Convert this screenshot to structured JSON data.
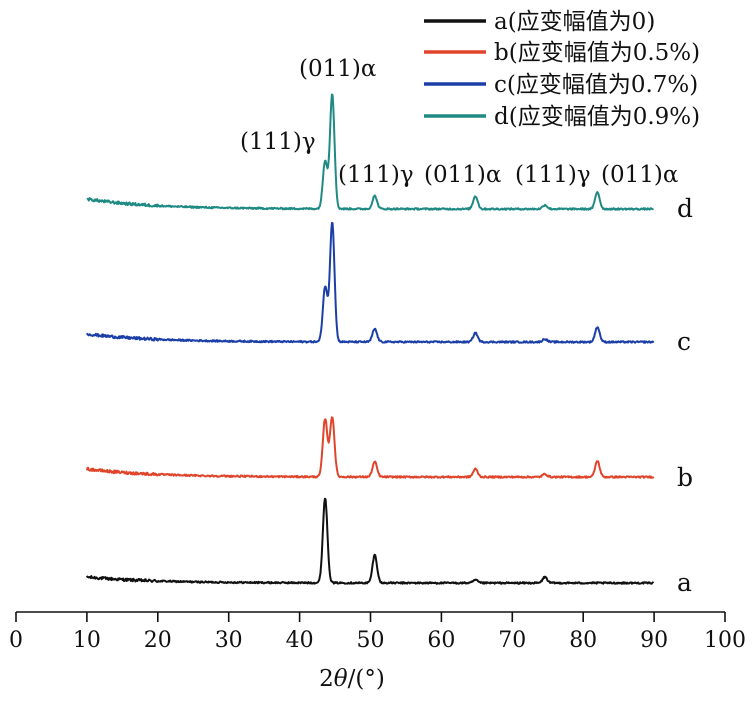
{
  "chart_data": {
    "type": "line",
    "xlabel": "2θ/(°)",
    "xlabel_parts": {
      "prefix": "2",
      "italic": "θ",
      "suffix": "/(°)"
    },
    "ylabel": "",
    "xlim": [
      0,
      100
    ],
    "xticks": [
      "0",
      "10",
      "20",
      "30",
      "40",
      "50",
      "60",
      "70",
      "80",
      "90",
      "100"
    ],
    "y_ticks_shown": false,
    "grid": false,
    "legend_position": "top-right",
    "x_range_measured": [
      10,
      90
    ],
    "series": [
      {
        "name": "a(应变幅值为0)",
        "curve_label": "a",
        "color": "#111111",
        "peaks": [
          {
            "x": 43.6,
            "height": 85
          },
          {
            "x": 50.6,
            "height": 28
          },
          {
            "x": 64.8,
            "height": 3
          },
          {
            "x": 74.6,
            "height": 6
          }
        ]
      },
      {
        "name": "b(应变幅值为0.5%)",
        "curve_label": "b",
        "color": "#e0452b",
        "peaks": [
          {
            "x": 43.6,
            "height": 58
          },
          {
            "x": 44.6,
            "height": 60
          },
          {
            "x": 50.6,
            "height": 15
          },
          {
            "x": 64.8,
            "height": 8
          },
          {
            "x": 74.6,
            "height": 3
          },
          {
            "x": 82.0,
            "height": 16
          }
        ]
      },
      {
        "name": "c(应变幅值为0.7%)",
        "curve_label": "c",
        "color": "#1b3fa6",
        "peaks": [
          {
            "x": 43.6,
            "height": 55
          },
          {
            "x": 44.6,
            "height": 120
          },
          {
            "x": 50.6,
            "height": 13
          },
          {
            "x": 64.8,
            "height": 9
          },
          {
            "x": 74.6,
            "height": 3
          },
          {
            "x": 82.0,
            "height": 15
          }
        ]
      },
      {
        "name": "d(应变幅值为0.9%)",
        "curve_label": "d",
        "color": "#1f8a83",
        "peaks": [
          {
            "x": 43.6,
            "height": 48
          },
          {
            "x": 44.6,
            "height": 115
          },
          {
            "x": 50.6,
            "height": 13
          },
          {
            "x": 64.8,
            "height": 13
          },
          {
            "x": 74.6,
            "height": 4
          },
          {
            "x": 82.0,
            "height": 17
          }
        ]
      }
    ],
    "annotations": [
      {
        "text": "(011)α",
        "x": 44.6,
        "at": "above-tallest"
      },
      {
        "text": "(111)γ",
        "x": 43.6,
        "at": "left-of-tallest"
      },
      {
        "text": "(111)γ",
        "x": 50.6,
        "at": "row"
      },
      {
        "text": "(011)α",
        "x": 64.8,
        "at": "row"
      },
      {
        "text": "(111)γ",
        "x": 74.6,
        "at": "row"
      },
      {
        "text": "(011)α",
        "x": 82.0,
        "at": "row"
      }
    ]
  }
}
